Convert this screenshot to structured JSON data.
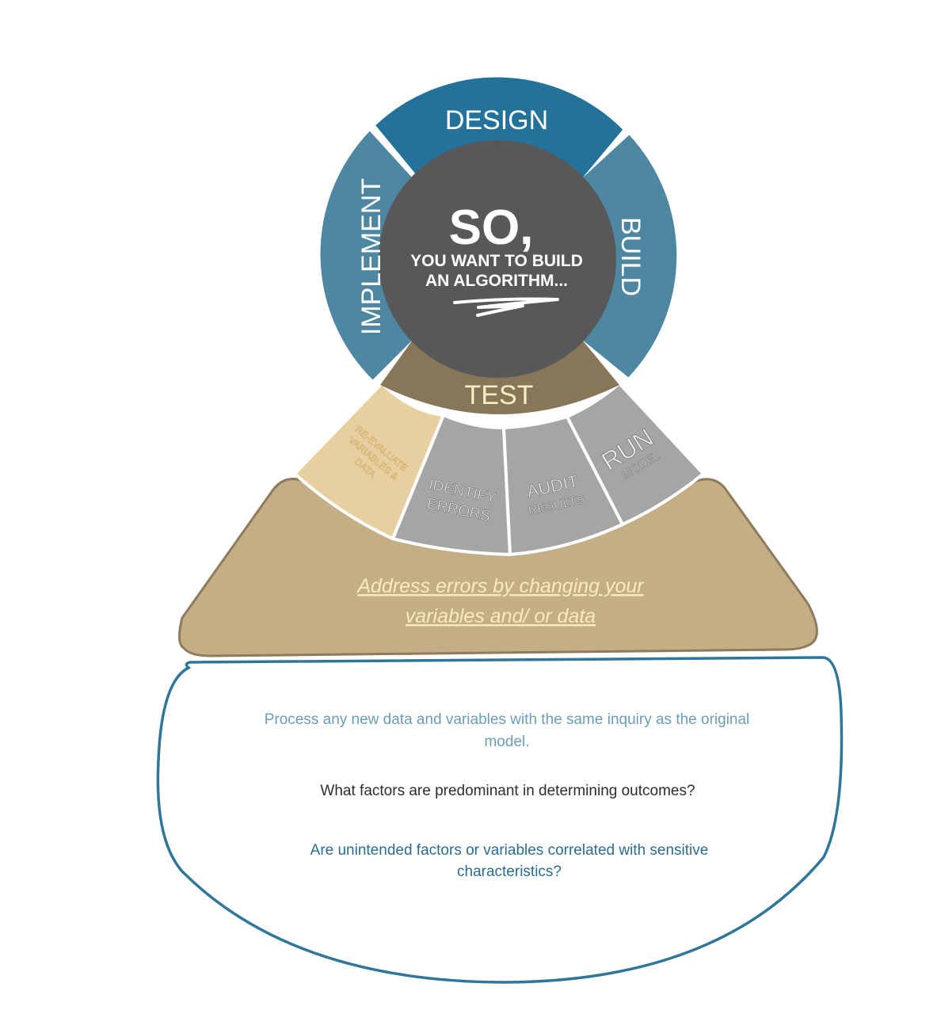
{
  "ring": {
    "center": {
      "big": "SO,",
      "line1": "YOU WANT TO BUILD",
      "line2": "AN ALGORITHM..."
    },
    "segments": {
      "design": "DESIGN",
      "build": "BUILD",
      "implement": "IMPLEMENT",
      "test": "TEST"
    }
  },
  "test_steps": {
    "reevaluate": [
      "RE-EVALUATE",
      "VARIABLES &",
      "DATA"
    ],
    "identify": [
      "IDENTIFY",
      "ERRORS"
    ],
    "audit": [
      "AUDIT",
      "RESULTS"
    ],
    "run": [
      "RUN",
      "MODEL"
    ]
  },
  "address_link": {
    "line1": "Address errors by changing your",
    "line2": "variables and/ or data"
  },
  "info": {
    "process": [
      "Process any new data and variables with the same inquiry as the original",
      "model."
    ],
    "factors": "What factors are predominant in determining outcomes?",
    "correlated": [
      "Are unintended factors or variables correlated with sensitive",
      "characteristics?"
    ]
  },
  "colors": {
    "design": "#24729a",
    "side": "#4d87a2",
    "center": "#58585a",
    "test": "#877657",
    "test_text": "#f6efc4",
    "steps_gray": "#a5a5a8",
    "reevaluate": "#e8cf9f",
    "reevaluate_text": "#f3e6b9",
    "tan": "#c4ae86",
    "tan_border": "#8d7b5c",
    "link": "#f6ecba",
    "box_border": "#2f7698",
    "info_blue_light": "#6a9db7",
    "info_dark": "#2d2d2d",
    "info_blue": "#2a6c94"
  }
}
